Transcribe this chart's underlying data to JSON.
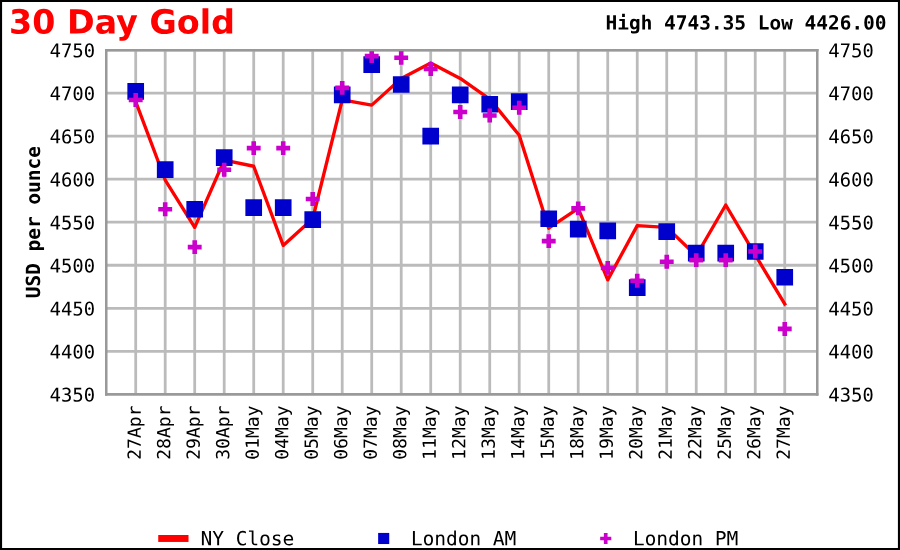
{
  "chart_data": {
    "type": "line",
    "title": "30 Day Gold",
    "subtitle": "High 4743.35 Low 4426.00",
    "ylabel": "USD per ounce",
    "categories": [
      "27Apr",
      "28Apr",
      "29Apr",
      "30Apr",
      "01May",
      "04May",
      "05May",
      "06May",
      "07May",
      "08May",
      "11May",
      "12May",
      "13May",
      "14May",
      "15May",
      "18May",
      "19May",
      "20May",
      "21May",
      "22May",
      "25May",
      "26May",
      "27May"
    ],
    "series": [
      {
        "name": "NY Close",
        "color": "#ff0000",
        "marker": "none",
        "line_style": "solid",
        "values": [
          4690,
          4599,
          4544,
          4622,
          4615,
          4523,
          4554,
          4692,
          4686,
          4717,
          4735,
          4717,
          4693,
          4651,
          4543,
          4566,
          4483,
          4546,
          4544,
          4511,
          4570,
          4512,
          4455
        ]
      },
      {
        "name": "London AM",
        "type": "scatter",
        "color": "#0000cc",
        "marker": "square",
        "values": [
          4702,
          4611,
          4565,
          4625,
          4567,
          4567,
          4553,
          4698,
          4733,
          4710,
          4650,
          4698,
          4687,
          4690,
          4554,
          4542,
          4540,
          4474,
          4539,
          4514,
          4514,
          4516,
          4486
        ]
      },
      {
        "name": "London PM",
        "type": "scatter",
        "color": "#cc00cc",
        "marker": "cross",
        "values": [
          4692,
          4565,
          4521,
          4611,
          4636,
          4636,
          4577,
          4706,
          4743,
          4741,
          4728,
          4678,
          4674,
          4683,
          4528,
          4566,
          4497,
          4482,
          4504,
          4506,
          4506,
          4516,
          4426
        ]
      }
    ],
    "ylim": [
      4350,
      4750
    ],
    "yticks": [
      4350,
      4400,
      4450,
      4500,
      4550,
      4600,
      4650,
      4700,
      4750
    ],
    "y2lim": [
      4350,
      4750
    ],
    "y2ticks": [
      4350,
      4400,
      4450,
      4500,
      4550,
      4600,
      4650,
      4700,
      4750
    ],
    "grid": true,
    "legend": "bottom"
  }
}
